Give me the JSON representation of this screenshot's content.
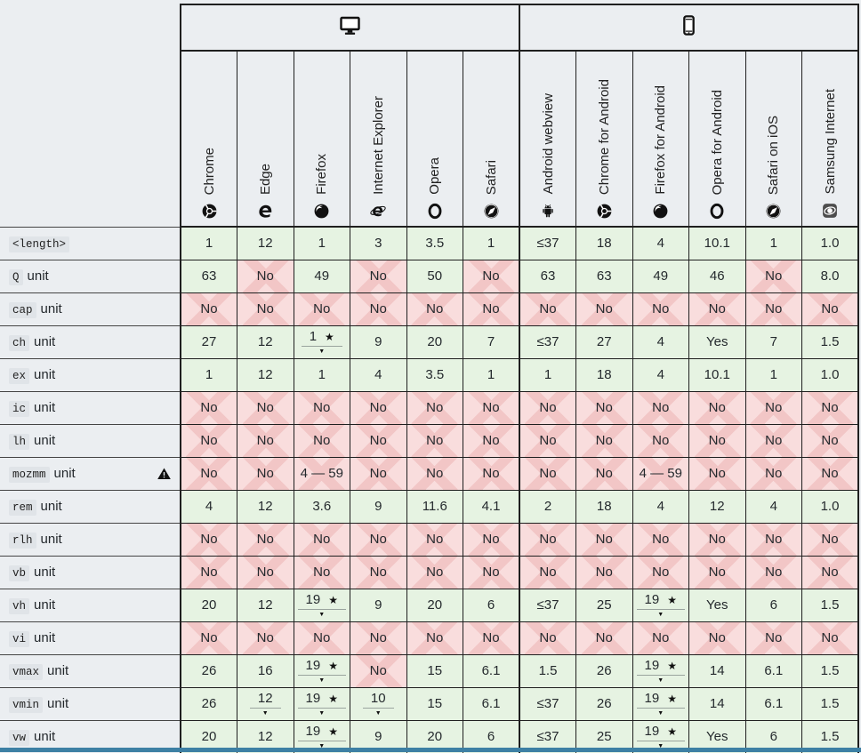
{
  "colors": {
    "page_bg": "#ebeef1",
    "supported_bg": "#e6f3e2",
    "unsupported_bg": "#f9dddd",
    "unsupported_cross": "#f2c6c6",
    "chip_bg": "#e0e4e8",
    "accent_bar": "#3d80a4"
  },
  "glyphs": {
    "note_star": "★",
    "expand_caret": "▼"
  },
  "header": {
    "groups": [
      {
        "id": "desktop",
        "icon": "desktop-icon",
        "columns": [
          "Chrome",
          "Edge",
          "Firefox",
          "Internet Explorer",
          "Opera",
          "Safari"
        ]
      },
      {
        "id": "mobile",
        "icon": "mobile-icon",
        "columns": [
          "Android webview",
          "Chrome for Android",
          "Firefox for Android",
          "Opera for Android",
          "Safari on iOS",
          "Samsung Internet"
        ]
      }
    ],
    "browser_icons": [
      "chrome-icon",
      "edge-icon",
      "firefox-icon",
      "internet-explorer-icon",
      "opera-icon",
      "safari-icon",
      "android-icon",
      "chrome-icon",
      "firefox-icon",
      "opera-icon",
      "safari-icon",
      "samsung-internet-icon"
    ]
  },
  "rows": [
    {
      "code": "<length>",
      "suffix": "",
      "warning": false,
      "cells": [
        {
          "t": "1",
          "s": "y"
        },
        {
          "t": "12",
          "s": "y"
        },
        {
          "t": "1",
          "s": "y"
        },
        {
          "t": "3",
          "s": "y"
        },
        {
          "t": "3.5",
          "s": "y"
        },
        {
          "t": "1",
          "s": "y"
        },
        {
          "t": "≤37",
          "s": "y"
        },
        {
          "t": "18",
          "s": "y"
        },
        {
          "t": "4",
          "s": "y"
        },
        {
          "t": "10.1",
          "s": "y"
        },
        {
          "t": "1",
          "s": "y"
        },
        {
          "t": "1.0",
          "s": "y"
        }
      ]
    },
    {
      "code": "Q",
      "suffix": "unit",
      "warning": false,
      "cells": [
        {
          "t": "63",
          "s": "y"
        },
        {
          "t": "No",
          "s": "n"
        },
        {
          "t": "49",
          "s": "y"
        },
        {
          "t": "No",
          "s": "n"
        },
        {
          "t": "50",
          "s": "y"
        },
        {
          "t": "No",
          "s": "n"
        },
        {
          "t": "63",
          "s": "y"
        },
        {
          "t": "63",
          "s": "y"
        },
        {
          "t": "49",
          "s": "y"
        },
        {
          "t": "46",
          "s": "y"
        },
        {
          "t": "No",
          "s": "n"
        },
        {
          "t": "8.0",
          "s": "y"
        }
      ]
    },
    {
      "code": "cap",
      "suffix": "unit",
      "warning": false,
      "cells": [
        {
          "t": "No",
          "s": "n"
        },
        {
          "t": "No",
          "s": "n"
        },
        {
          "t": "No",
          "s": "n"
        },
        {
          "t": "No",
          "s": "n"
        },
        {
          "t": "No",
          "s": "n"
        },
        {
          "t": "No",
          "s": "n"
        },
        {
          "t": "No",
          "s": "n"
        },
        {
          "t": "No",
          "s": "n"
        },
        {
          "t": "No",
          "s": "n"
        },
        {
          "t": "No",
          "s": "n"
        },
        {
          "t": "No",
          "s": "n"
        },
        {
          "t": "No",
          "s": "n"
        }
      ]
    },
    {
      "code": "ch",
      "suffix": "unit",
      "warning": false,
      "cells": [
        {
          "t": "27",
          "s": "y"
        },
        {
          "t": "12",
          "s": "y"
        },
        {
          "t": "1",
          "s": "y",
          "star": true,
          "exp": true
        },
        {
          "t": "9",
          "s": "y"
        },
        {
          "t": "20",
          "s": "y"
        },
        {
          "t": "7",
          "s": "y"
        },
        {
          "t": "≤37",
          "s": "y"
        },
        {
          "t": "27",
          "s": "y"
        },
        {
          "t": "4",
          "s": "y"
        },
        {
          "t": "Yes",
          "s": "y"
        },
        {
          "t": "7",
          "s": "y"
        },
        {
          "t": "1.5",
          "s": "y"
        }
      ]
    },
    {
      "code": "ex",
      "suffix": "unit",
      "warning": false,
      "cells": [
        {
          "t": "1",
          "s": "y"
        },
        {
          "t": "12",
          "s": "y"
        },
        {
          "t": "1",
          "s": "y"
        },
        {
          "t": "4",
          "s": "y"
        },
        {
          "t": "3.5",
          "s": "y"
        },
        {
          "t": "1",
          "s": "y"
        },
        {
          "t": "1",
          "s": "y"
        },
        {
          "t": "18",
          "s": "y"
        },
        {
          "t": "4",
          "s": "y"
        },
        {
          "t": "10.1",
          "s": "y"
        },
        {
          "t": "1",
          "s": "y"
        },
        {
          "t": "1.0",
          "s": "y"
        }
      ]
    },
    {
      "code": "ic",
      "suffix": "unit",
      "warning": false,
      "cells": [
        {
          "t": "No",
          "s": "n"
        },
        {
          "t": "No",
          "s": "n"
        },
        {
          "t": "No",
          "s": "n"
        },
        {
          "t": "No",
          "s": "n"
        },
        {
          "t": "No",
          "s": "n"
        },
        {
          "t": "No",
          "s": "n"
        },
        {
          "t": "No",
          "s": "n"
        },
        {
          "t": "No",
          "s": "n"
        },
        {
          "t": "No",
          "s": "n"
        },
        {
          "t": "No",
          "s": "n"
        },
        {
          "t": "No",
          "s": "n"
        },
        {
          "t": "No",
          "s": "n"
        }
      ]
    },
    {
      "code": "lh",
      "suffix": "unit",
      "warning": false,
      "cells": [
        {
          "t": "No",
          "s": "n"
        },
        {
          "t": "No",
          "s": "n"
        },
        {
          "t": "No",
          "s": "n"
        },
        {
          "t": "No",
          "s": "n"
        },
        {
          "t": "No",
          "s": "n"
        },
        {
          "t": "No",
          "s": "n"
        },
        {
          "t": "No",
          "s": "n"
        },
        {
          "t": "No",
          "s": "n"
        },
        {
          "t": "No",
          "s": "n"
        },
        {
          "t": "No",
          "s": "n"
        },
        {
          "t": "No",
          "s": "n"
        },
        {
          "t": "No",
          "s": "n"
        }
      ]
    },
    {
      "code": "mozmm",
      "suffix": "unit",
      "warning": true,
      "cells": [
        {
          "t": "No",
          "s": "n"
        },
        {
          "t": "No",
          "s": "n"
        },
        {
          "t": "4 — 59",
          "s": "n"
        },
        {
          "t": "No",
          "s": "n"
        },
        {
          "t": "No",
          "s": "n"
        },
        {
          "t": "No",
          "s": "n"
        },
        {
          "t": "No",
          "s": "n"
        },
        {
          "t": "No",
          "s": "n"
        },
        {
          "t": "4 — 59",
          "s": "n"
        },
        {
          "t": "No",
          "s": "n"
        },
        {
          "t": "No",
          "s": "n"
        },
        {
          "t": "No",
          "s": "n"
        }
      ]
    },
    {
      "code": "rem",
      "suffix": "unit",
      "warning": false,
      "cells": [
        {
          "t": "4",
          "s": "y"
        },
        {
          "t": "12",
          "s": "y"
        },
        {
          "t": "3.6",
          "s": "y"
        },
        {
          "t": "9",
          "s": "y"
        },
        {
          "t": "11.6",
          "s": "y"
        },
        {
          "t": "4.1",
          "s": "y"
        },
        {
          "t": "2",
          "s": "y"
        },
        {
          "t": "18",
          "s": "y"
        },
        {
          "t": "4",
          "s": "y"
        },
        {
          "t": "12",
          "s": "y"
        },
        {
          "t": "4",
          "s": "y"
        },
        {
          "t": "1.0",
          "s": "y"
        }
      ]
    },
    {
      "code": "rlh",
      "suffix": "unit",
      "warning": false,
      "cells": [
        {
          "t": "No",
          "s": "n"
        },
        {
          "t": "No",
          "s": "n"
        },
        {
          "t": "No",
          "s": "n"
        },
        {
          "t": "No",
          "s": "n"
        },
        {
          "t": "No",
          "s": "n"
        },
        {
          "t": "No",
          "s": "n"
        },
        {
          "t": "No",
          "s": "n"
        },
        {
          "t": "No",
          "s": "n"
        },
        {
          "t": "No",
          "s": "n"
        },
        {
          "t": "No",
          "s": "n"
        },
        {
          "t": "No",
          "s": "n"
        },
        {
          "t": "No",
          "s": "n"
        }
      ]
    },
    {
      "code": "vb",
      "suffix": "unit",
      "warning": false,
      "cells": [
        {
          "t": "No",
          "s": "n"
        },
        {
          "t": "No",
          "s": "n"
        },
        {
          "t": "No",
          "s": "n"
        },
        {
          "t": "No",
          "s": "n"
        },
        {
          "t": "No",
          "s": "n"
        },
        {
          "t": "No",
          "s": "n"
        },
        {
          "t": "No",
          "s": "n"
        },
        {
          "t": "No",
          "s": "n"
        },
        {
          "t": "No",
          "s": "n"
        },
        {
          "t": "No",
          "s": "n"
        },
        {
          "t": "No",
          "s": "n"
        },
        {
          "t": "No",
          "s": "n"
        }
      ]
    },
    {
      "code": "vh",
      "suffix": "unit",
      "warning": false,
      "cells": [
        {
          "t": "20",
          "s": "y"
        },
        {
          "t": "12",
          "s": "y"
        },
        {
          "t": "19",
          "s": "y",
          "star": true,
          "exp": true
        },
        {
          "t": "9",
          "s": "y"
        },
        {
          "t": "20",
          "s": "y"
        },
        {
          "t": "6",
          "s": "y"
        },
        {
          "t": "≤37",
          "s": "y"
        },
        {
          "t": "25",
          "s": "y"
        },
        {
          "t": "19",
          "s": "y",
          "star": true,
          "exp": true
        },
        {
          "t": "Yes",
          "s": "y"
        },
        {
          "t": "6",
          "s": "y"
        },
        {
          "t": "1.5",
          "s": "y"
        }
      ]
    },
    {
      "code": "vi",
      "suffix": "unit",
      "warning": false,
      "cells": [
        {
          "t": "No",
          "s": "n"
        },
        {
          "t": "No",
          "s": "n"
        },
        {
          "t": "No",
          "s": "n"
        },
        {
          "t": "No",
          "s": "n"
        },
        {
          "t": "No",
          "s": "n"
        },
        {
          "t": "No",
          "s": "n"
        },
        {
          "t": "No",
          "s": "n"
        },
        {
          "t": "No",
          "s": "n"
        },
        {
          "t": "No",
          "s": "n"
        },
        {
          "t": "No",
          "s": "n"
        },
        {
          "t": "No",
          "s": "n"
        },
        {
          "t": "No",
          "s": "n"
        }
      ]
    },
    {
      "code": "vmax",
      "suffix": "unit",
      "warning": false,
      "cells": [
        {
          "t": "26",
          "s": "y"
        },
        {
          "t": "16",
          "s": "y"
        },
        {
          "t": "19",
          "s": "y",
          "star": true,
          "exp": true
        },
        {
          "t": "No",
          "s": "n"
        },
        {
          "t": "15",
          "s": "y"
        },
        {
          "t": "6.1",
          "s": "y"
        },
        {
          "t": "1.5",
          "s": "y"
        },
        {
          "t": "26",
          "s": "y"
        },
        {
          "t": "19",
          "s": "y",
          "star": true,
          "exp": true
        },
        {
          "t": "14",
          "s": "y"
        },
        {
          "t": "6.1",
          "s": "y"
        },
        {
          "t": "1.5",
          "s": "y"
        }
      ]
    },
    {
      "code": "vmin",
      "suffix": "unit",
      "warning": false,
      "cells": [
        {
          "t": "26",
          "s": "y"
        },
        {
          "t": "12",
          "s": "y",
          "exp": true
        },
        {
          "t": "19",
          "s": "y",
          "star": true,
          "exp": true
        },
        {
          "t": "10",
          "s": "y",
          "exp": true
        },
        {
          "t": "15",
          "s": "y"
        },
        {
          "t": "6.1",
          "s": "y"
        },
        {
          "t": "≤37",
          "s": "y"
        },
        {
          "t": "26",
          "s": "y"
        },
        {
          "t": "19",
          "s": "y",
          "star": true,
          "exp": true
        },
        {
          "t": "14",
          "s": "y"
        },
        {
          "t": "6.1",
          "s": "y"
        },
        {
          "t": "1.5",
          "s": "y"
        }
      ]
    },
    {
      "code": "vw",
      "suffix": "unit",
      "warning": false,
      "cells": [
        {
          "t": "20",
          "s": "y"
        },
        {
          "t": "12",
          "s": "y"
        },
        {
          "t": "19",
          "s": "y",
          "star": true,
          "exp": true
        },
        {
          "t": "9",
          "s": "y"
        },
        {
          "t": "20",
          "s": "y"
        },
        {
          "t": "6",
          "s": "y"
        },
        {
          "t": "≤37",
          "s": "y"
        },
        {
          "t": "25",
          "s": "y"
        },
        {
          "t": "19",
          "s": "y",
          "star": true,
          "exp": true
        },
        {
          "t": "Yes",
          "s": "y"
        },
        {
          "t": "6",
          "s": "y"
        },
        {
          "t": "1.5",
          "s": "y"
        }
      ]
    }
  ]
}
